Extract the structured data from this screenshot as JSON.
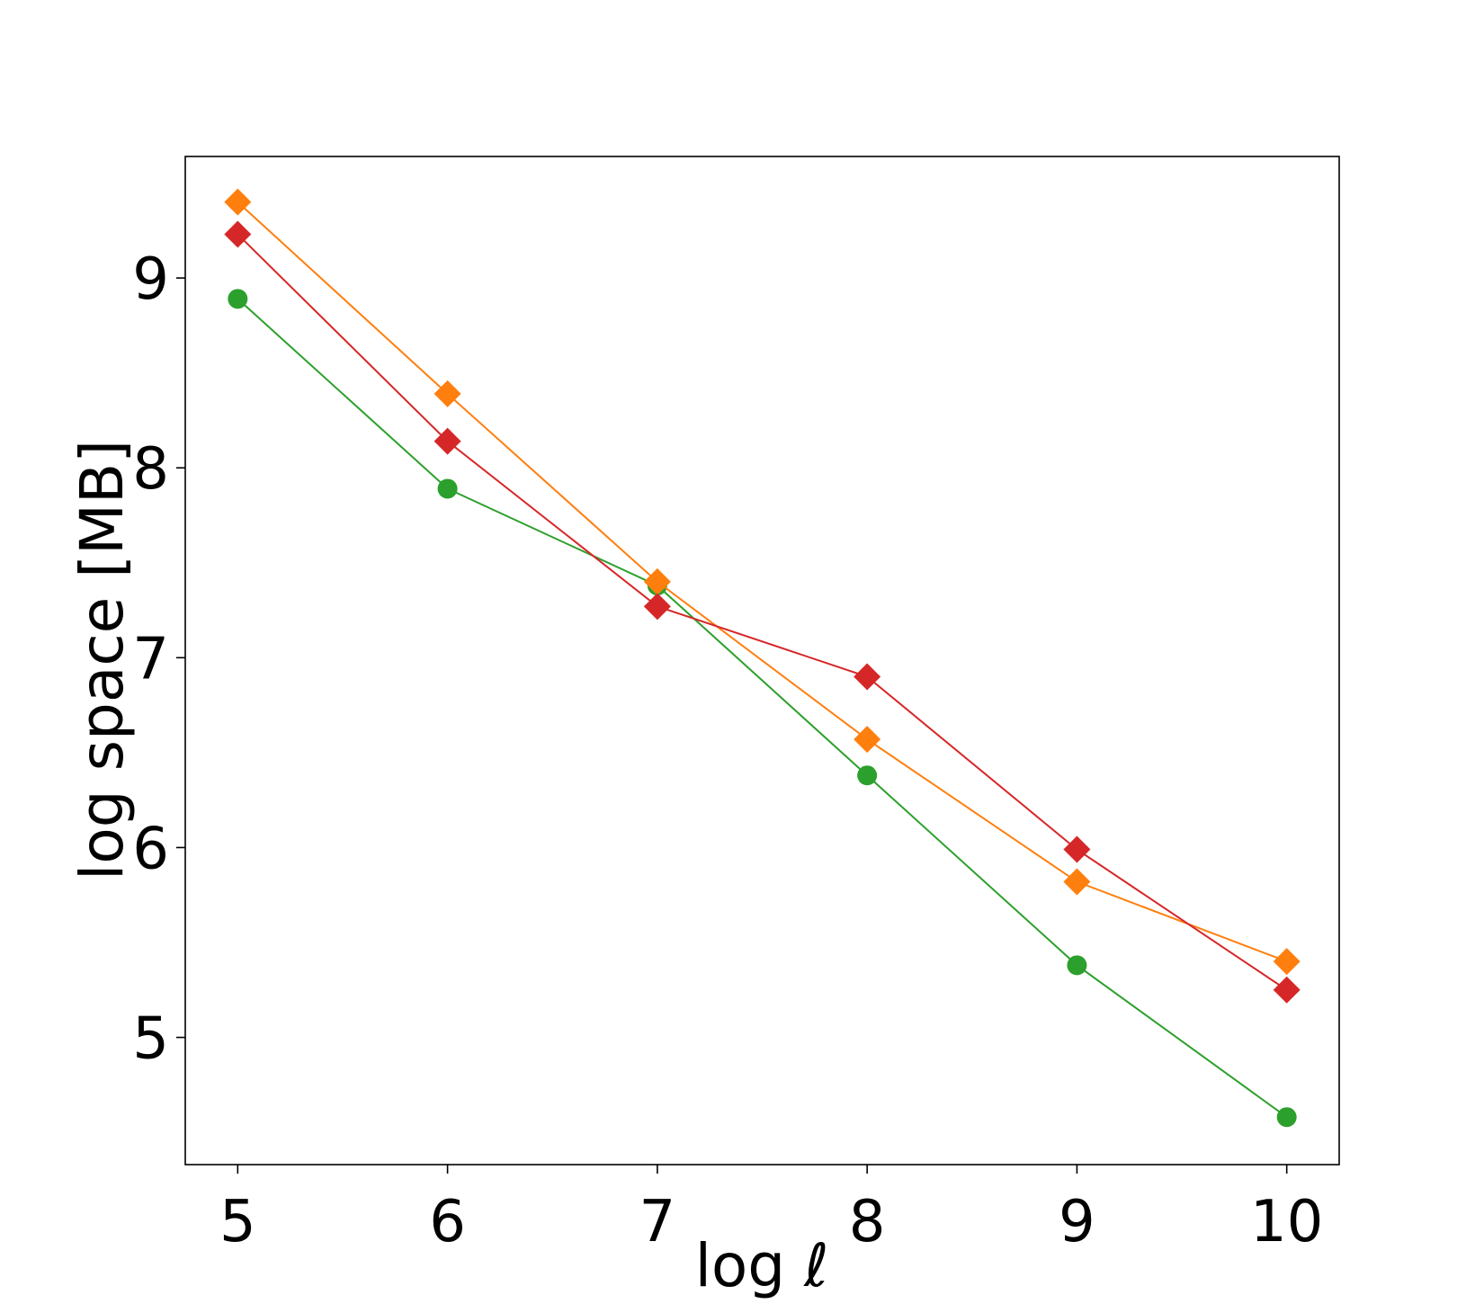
{
  "chart_data": {
    "type": "line",
    "xlabel": "log ℓ",
    "ylabel": "log space [MB]",
    "xlim": [
      4.75,
      10.25
    ],
    "ylim": [
      4.33,
      9.64
    ],
    "xticks": [
      5,
      6,
      7,
      8,
      9,
      10
    ],
    "yticks": [
      5,
      6,
      7,
      8,
      9
    ],
    "grid": false,
    "series": [
      {
        "color": "#2ca02c",
        "marker": "circle",
        "x": [
          5,
          6,
          7,
          8,
          9,
          10
        ],
        "y": [
          8.89,
          7.89,
          7.38,
          6.38,
          5.38,
          4.58
        ]
      },
      {
        "color": "#ff7f0e",
        "marker": "diamond",
        "x": [
          5,
          6,
          7,
          8,
          9,
          10
        ],
        "y": [
          9.4,
          8.39,
          7.4,
          6.57,
          5.82,
          5.4
        ]
      },
      {
        "color": "#d62728",
        "marker": "diamond",
        "x": [
          5,
          6,
          7,
          8,
          9,
          10
        ],
        "y": [
          9.23,
          8.14,
          7.27,
          6.9,
          5.99,
          5.25
        ]
      }
    ]
  }
}
